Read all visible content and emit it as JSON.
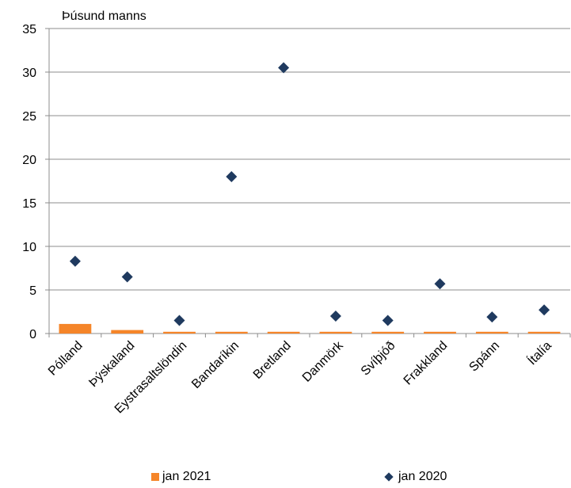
{
  "chart_data": {
    "type": "bar",
    "unit_label": "Þúsund manns",
    "categories": [
      "Pólland",
      "Þýskaland",
      "Eystrasaltslöndin",
      "Bandaríkin",
      "Bretland",
      "Danmörk",
      "Svíþjóð",
      "Frakkland",
      "Spánn",
      "Ítalía"
    ],
    "series": [
      {
        "name": "jan 2021",
        "kind": "bar",
        "color": "#F58529",
        "values": [
          1.1,
          0.4,
          0.2,
          0.2,
          0.2,
          0.2,
          0.2,
          0.2,
          0.2,
          0.2
        ]
      },
      {
        "name": "jan 2020",
        "kind": "scatter",
        "marker": "diamond",
        "color": "#1F3A5F",
        "values": [
          8.3,
          6.5,
          1.5,
          18.0,
          30.5,
          2.0,
          1.5,
          5.7,
          1.9,
          2.7
        ]
      }
    ],
    "ylim": [
      0,
      35
    ],
    "yticks": [
      "0",
      "5",
      "10",
      "15",
      "20",
      "25",
      "30",
      "35"
    ],
    "grid": true,
    "legend_position": "bottom"
  }
}
